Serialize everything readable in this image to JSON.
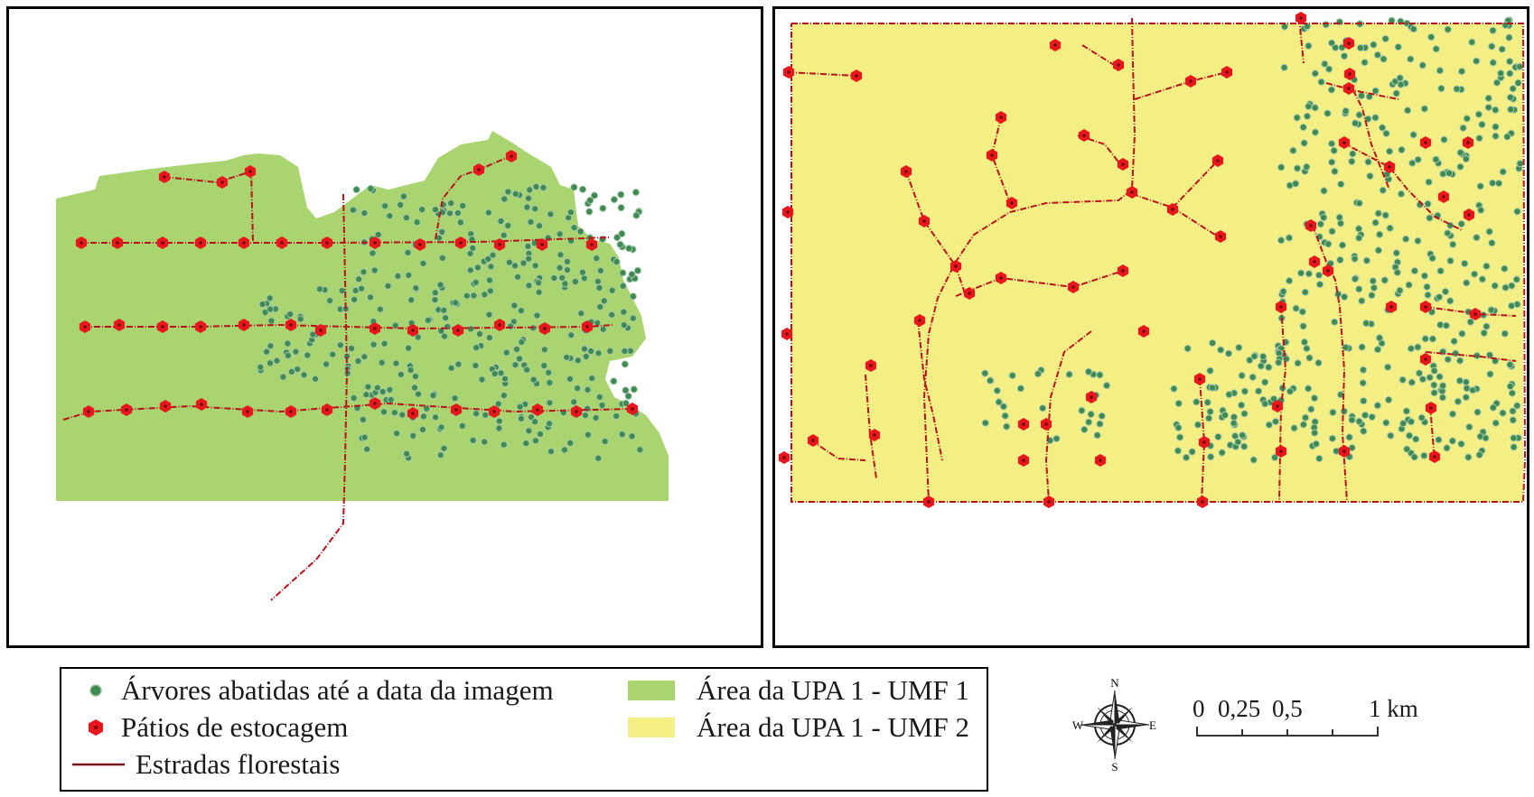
{
  "legend": {
    "trees_label": "Árvores abatidas até a data da imagem",
    "yards_label": "Pátios de estocagem",
    "roads_label": "Estradas florestais",
    "umf1_label": "Área da UPA 1 - UMF 1",
    "umf2_label": "Área da UPA 1 - UMF 2"
  },
  "colors": {
    "umf1_fill": "#a9d46f",
    "umf2_fill": "#f4ef85",
    "road": "#b8121b",
    "yard": "#e8161d",
    "tree": "#3f8a52"
  },
  "compass": {
    "n": "N",
    "s": "S",
    "e": "E",
    "w": "W"
  },
  "scale": {
    "t0": "0",
    "t1": "0,25",
    "t2": "0,5",
    "t3": "1 km"
  },
  "icons": [
    "compass-rose-icon",
    "tree-dot-icon",
    "yard-hexagon-icon"
  ]
}
